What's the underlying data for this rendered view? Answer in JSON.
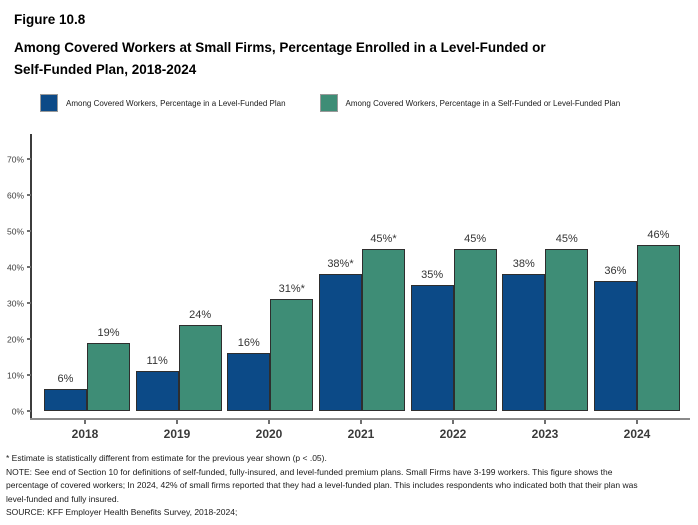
{
  "title": {
    "figure_number": "Figure 10.8",
    "line1": "Among Covered Workers at Small Firms, Percentage Enrolled in a Level-Funded or",
    "line2": "Self-Funded Plan, 2018-2024"
  },
  "legend": [
    {
      "label": "Among Covered Workers, Percentage in a Level-Funded Plan",
      "color": "#0C4A87"
    },
    {
      "label": "Among Covered Workers, Percentage in a Self-Funded or Level-Funded Plan",
      "color": "#3E8D76"
    }
  ],
  "chart_data": {
    "type": "bar",
    "categories": [
      "2018",
      "2019",
      "2020",
      "2021",
      "2022",
      "2023",
      "2024"
    ],
    "series": [
      {
        "name": "Among Covered Workers, Percentage in a Level-Funded Plan",
        "color": "#0C4A87",
        "values": [
          6,
          11,
          16,
          38,
          35,
          38,
          36
        ],
        "labels": [
          "6%",
          "11%",
          "16%",
          "38%*",
          "35%",
          "38%",
          "36%"
        ]
      },
      {
        "name": "Among Covered Workers, Percentage in a Self-Funded or Level-Funded Plan",
        "color": "#3E8D76",
        "values": [
          19,
          24,
          31,
          45,
          45,
          45,
          46
        ],
        "labels": [
          "19%",
          "24%",
          "31%*",
          "45%*",
          "45%",
          "45%",
          "46%"
        ]
      }
    ],
    "ylim": [
      0,
      75
    ],
    "ytick_values": [
      0,
      10,
      20,
      30,
      40,
      50,
      60,
      70
    ],
    "ytick_labels": [
      "0%",
      "10%",
      "20%",
      "30%",
      "40%",
      "50%",
      "60%",
      "70%"
    ],
    "grid": false,
    "legend_position": "top"
  },
  "footnotes": {
    "asterisk": "* Estimate is statistically different from estimate for the previous year shown (p < .05).",
    "note": "NOTE: See end of Section 10 for definitions of self-funded, fully-insured, and level-funded premium plans. Small Firms have 3-199 workers. This figure shows the percentage of covered workers; In 2024, 42% of small firms reported that they had a level-funded plan. This includes respondents who indicated both that their plan was level-funded and fully insured.",
    "source": "SOURCE: KFF Employer Health Benefits Survey, 2018-2024;"
  }
}
